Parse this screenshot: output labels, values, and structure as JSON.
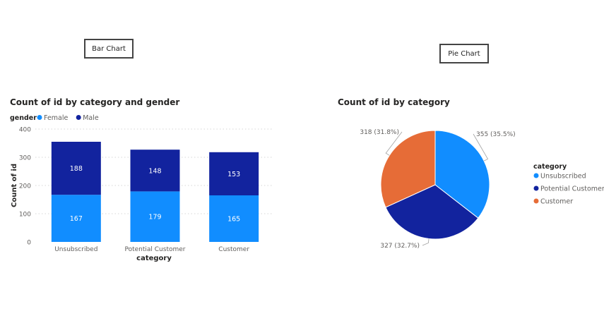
{
  "labels": {
    "bar": "Bar Chart",
    "pie": "Pie Chart"
  },
  "chart_data": [
    {
      "type": "bar",
      "stacked": true,
      "title": "Count of id by category and gender",
      "legend_title": "gender",
      "legend_position": "top-left",
      "categories": [
        "Unsubscribed",
        "Potential Customer",
        "Customer"
      ],
      "series": [
        {
          "name": "Female",
          "values": [
            167,
            179,
            165
          ],
          "color": "#118DFF"
        },
        {
          "name": "Male",
          "values": [
            188,
            148,
            153
          ],
          "color": "#12239E"
        }
      ],
      "xlabel": "category",
      "ylabel": "Count of id",
      "ylim": [
        0,
        400
      ],
      "yticks": [
        0,
        100,
        200,
        300,
        400
      ],
      "grid": true
    },
    {
      "type": "pie",
      "title": "Count of id by category",
      "legend_title": "category",
      "legend_position": "right",
      "slices": [
        {
          "label": "Unsubscribed",
          "value": 355,
          "text": "355 (35.5%)",
          "color": "#118DFF"
        },
        {
          "label": "Potential Customer",
          "value": 327,
          "text": "327 (32.7%)",
          "color": "#12239E"
        },
        {
          "label": "Customer",
          "value": 318,
          "text": "318 (31.8%)",
          "color": "#E66C37"
        }
      ]
    }
  ]
}
